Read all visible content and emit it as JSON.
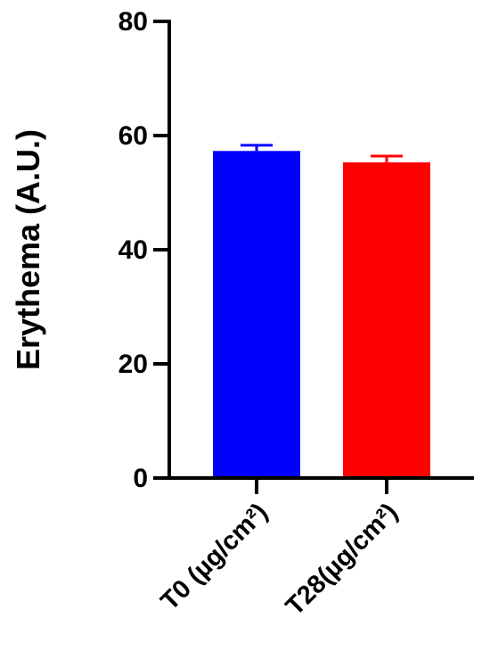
{
  "chart_data": {
    "type": "bar",
    "categories": [
      "T0 (µg/cm²)",
      "T28(µg/cm²)"
    ],
    "values": [
      57.3,
      55.3
    ],
    "error": [
      1.0,
      1.1
    ],
    "colors": [
      "#0000ff",
      "#ff0000"
    ],
    "xlabel": "",
    "ylabel": "Erythema (A.U.)",
    "ylim": [
      0,
      80
    ],
    "yticks": [
      0,
      20,
      40,
      60,
      80
    ],
    "grid": false
  }
}
